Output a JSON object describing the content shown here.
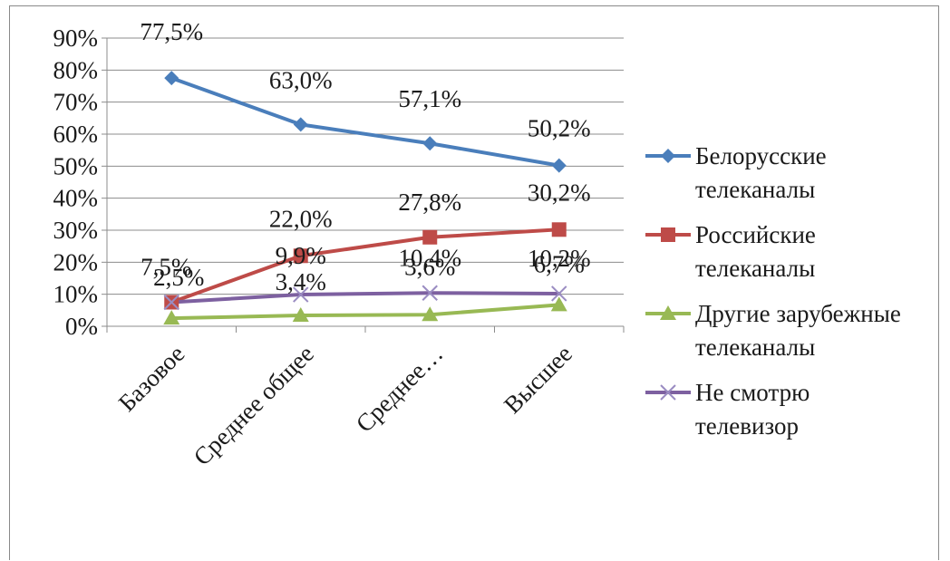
{
  "chart_data": {
    "type": "line",
    "categories": [
      "Базовое",
      "Среднее общее",
      "Среднее…",
      "Высшее"
    ],
    "ylim": [
      0,
      90
    ],
    "yticks": [
      "0%",
      "10%",
      "20%",
      "30%",
      "40%",
      "50%",
      "60%",
      "70%",
      "80%",
      "90%"
    ],
    "grid": true,
    "legend_position": "right",
    "series": [
      {
        "name_lines": [
          "Белорусские",
          "телеканалы"
        ],
        "values": [
          77.5,
          63.0,
          57.1,
          50.2
        ],
        "labels": [
          "77,5%",
          "63,0%",
          "57,1%",
          "50,2%"
        ],
        "color": "#4a7ebb",
        "marker": "diamond"
      },
      {
        "name_lines": [
          "Российские",
          "телеканалы"
        ],
        "values": [
          7.5,
          22.0,
          27.8,
          30.2
        ],
        "labels": [
          "7,5%",
          "22,0%",
          "27,8%",
          "30,2%"
        ],
        "color": "#be4b48",
        "marker": "square"
      },
      {
        "name_lines": [
          "Другие зарубежные",
          "телеканалы"
        ],
        "values": [
          2.5,
          3.4,
          3.6,
          6.7
        ],
        "labels": [
          "2,5%",
          "3,4%",
          "3,6%",
          "6,7%"
        ],
        "color": "#98b954",
        "marker": "triangle"
      },
      {
        "name_lines": [
          "Не смотрю",
          "телевизор"
        ],
        "values": [
          7.5,
          9.9,
          10.4,
          10.2
        ],
        "labels": [
          "",
          "9,9%",
          "10,4%",
          "10,2%"
        ],
        "color": "#7d60a0",
        "marker": "x"
      }
    ]
  }
}
